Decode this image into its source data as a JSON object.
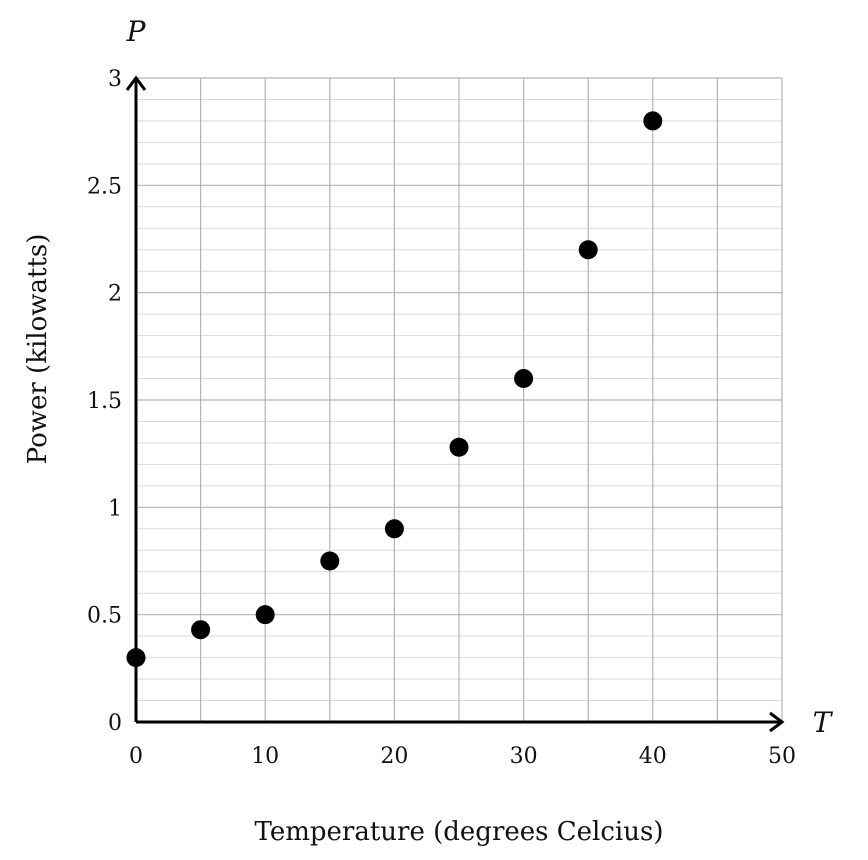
{
  "chart_data": {
    "type": "scatter",
    "xlabel": "Temperature (degrees Celcius)",
    "ylabel": "Power (kilowatts)",
    "x_var": "T",
    "y_var": "P",
    "xlim": [
      0,
      50
    ],
    "ylim": [
      0,
      3
    ],
    "x_ticks": [
      0,
      10,
      20,
      30,
      40,
      50
    ],
    "y_ticks": [
      0,
      0.5,
      1,
      1.5,
      2,
      2.5,
      3
    ],
    "x_ticks_labels": [
      "0",
      "10",
      "20",
      "30",
      "40",
      "50"
    ],
    "y_ticks_labels": [
      "0",
      "0.5",
      "1",
      "1.5",
      "2",
      "2.5",
      "3"
    ],
    "x_grid_step": 5,
    "y_grid_step": 0.1,
    "grid": true,
    "points": [
      {
        "x": 0,
        "y": 0.3
      },
      {
        "x": 5,
        "y": 0.43
      },
      {
        "x": 10,
        "y": 0.5
      },
      {
        "x": 15,
        "y": 0.75
      },
      {
        "x": 20,
        "y": 0.9
      },
      {
        "x": 25,
        "y": 1.28
      },
      {
        "x": 30,
        "y": 1.6
      },
      {
        "x": 35,
        "y": 2.2
      },
      {
        "x": 40,
        "y": 2.8
      }
    ]
  }
}
